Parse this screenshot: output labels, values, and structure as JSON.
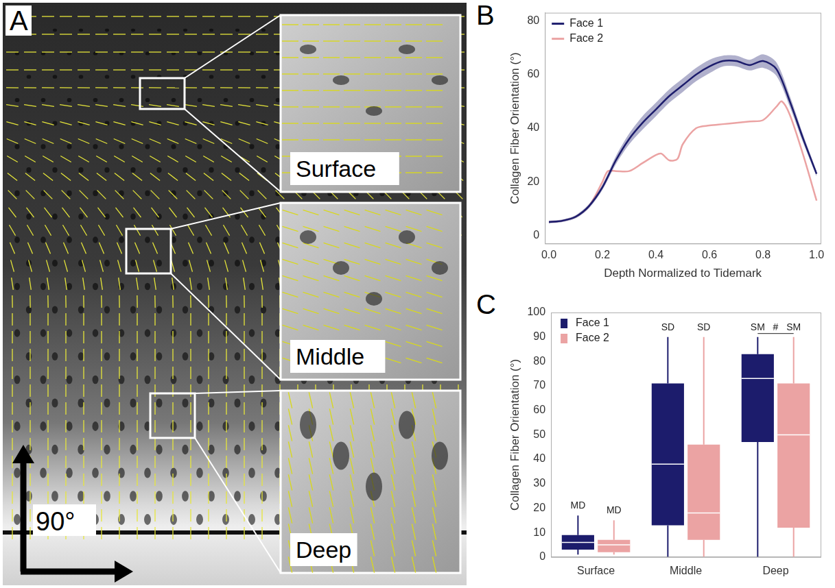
{
  "panel_a": {
    "panel_label": "A",
    "insets": [
      "Surface",
      "Middle",
      "Deep"
    ],
    "angle_label": "90°"
  },
  "chart_data": [
    {
      "type": "line",
      "panel_label": "B",
      "x_label": "Depth Normalized to Tidemark",
      "y_label": "Collagen Fiber Orientation (°)",
      "xlim": [
        -0.015,
        1.015
      ],
      "xticks": [
        {
          "value": 0,
          "label": "0.0"
        },
        {
          "value": 0.2,
          "label": "0.2"
        },
        {
          "value": 0.4,
          "label": "0.4"
        },
        {
          "value": 0.6,
          "label": "0.6"
        },
        {
          "value": 0.8,
          "label": "0.8"
        },
        {
          "value": 1,
          "label": "1.0"
        }
      ],
      "ylim": [
        -3,
        83
      ],
      "yticks": [
        0,
        20,
        40,
        60,
        80
      ],
      "grid": false,
      "legend": "top-left",
      "series": [
        {
          "name": "Face 1",
          "color": "#1c1c6c",
          "x": [
            0,
            0.05,
            0.1,
            0.15,
            0.2,
            0.25,
            0.3,
            0.35,
            0.4,
            0.45,
            0.5,
            0.55,
            0.6,
            0.65,
            0.7,
            0.75,
            0.8,
            0.85,
            0.9,
            0.95,
            1.0
          ],
          "values": [
            5,
            5.5,
            7,
            11,
            18,
            28,
            36,
            42,
            47,
            52,
            56,
            60,
            63,
            65,
            65,
            63.5,
            65,
            62,
            50,
            36,
            23
          ],
          "error": [
            0.5,
            0.5,
            0.6,
            0.8,
            1,
            1.5,
            2,
            2.5,
            2.5,
            2.5,
            2.5,
            2.5,
            2.5,
            2,
            2,
            2,
            2.5,
            2.5,
            2,
            1.5,
            1
          ]
        },
        {
          "name": "Face 2",
          "color": "#eba3a3",
          "x": [
            0,
            0.05,
            0.1,
            0.15,
            0.2,
            0.22,
            0.25,
            0.3,
            0.35,
            0.4,
            0.42,
            0.45,
            0.48,
            0.5,
            0.55,
            0.6,
            0.65,
            0.7,
            0.75,
            0.8,
            0.85,
            0.87,
            0.9,
            0.95,
            1.0
          ],
          "values": [
            5,
            5.5,
            7,
            11,
            20,
            24,
            24,
            24,
            27,
            30,
            30.5,
            28,
            28.5,
            34,
            40,
            41,
            41.5,
            42,
            42.5,
            43,
            48,
            50,
            45,
            30,
            13
          ]
        }
      ]
    },
    {
      "type": "box",
      "panel_label": "C",
      "y_label": "Collagen Fiber Orientation (°)",
      "categories": [
        "Surface",
        "Middle",
        "Deep"
      ],
      "ylim": [
        0,
        100
      ],
      "yticks": [
        0,
        10,
        20,
        30,
        40,
        50,
        60,
        70,
        80,
        90,
        100
      ],
      "grid": false,
      "legend": "top-left",
      "series": [
        {
          "name": "Face 1",
          "color": "#1c1c6c",
          "min": [
            1,
            0,
            0
          ],
          "q1": [
            3,
            13,
            47
          ],
          "median": [
            6,
            38,
            73
          ],
          "q3": [
            9,
            71,
            83
          ],
          "max": [
            17,
            90,
            90
          ],
          "annotations": [
            "MD",
            "SD",
            "SM"
          ]
        },
        {
          "name": "Face 2",
          "color": "#eba3a3",
          "min": [
            1,
            0,
            0
          ],
          "q1": [
            2,
            7,
            12
          ],
          "median": [
            5,
            18,
            50
          ],
          "q3": [
            7,
            46,
            71
          ],
          "max": [
            15,
            90,
            90
          ],
          "annotations": [
            "MD",
            "SD",
            "SM"
          ]
        }
      ],
      "significance": [
        {
          "category": "Deep",
          "label": "#"
        }
      ]
    }
  ]
}
